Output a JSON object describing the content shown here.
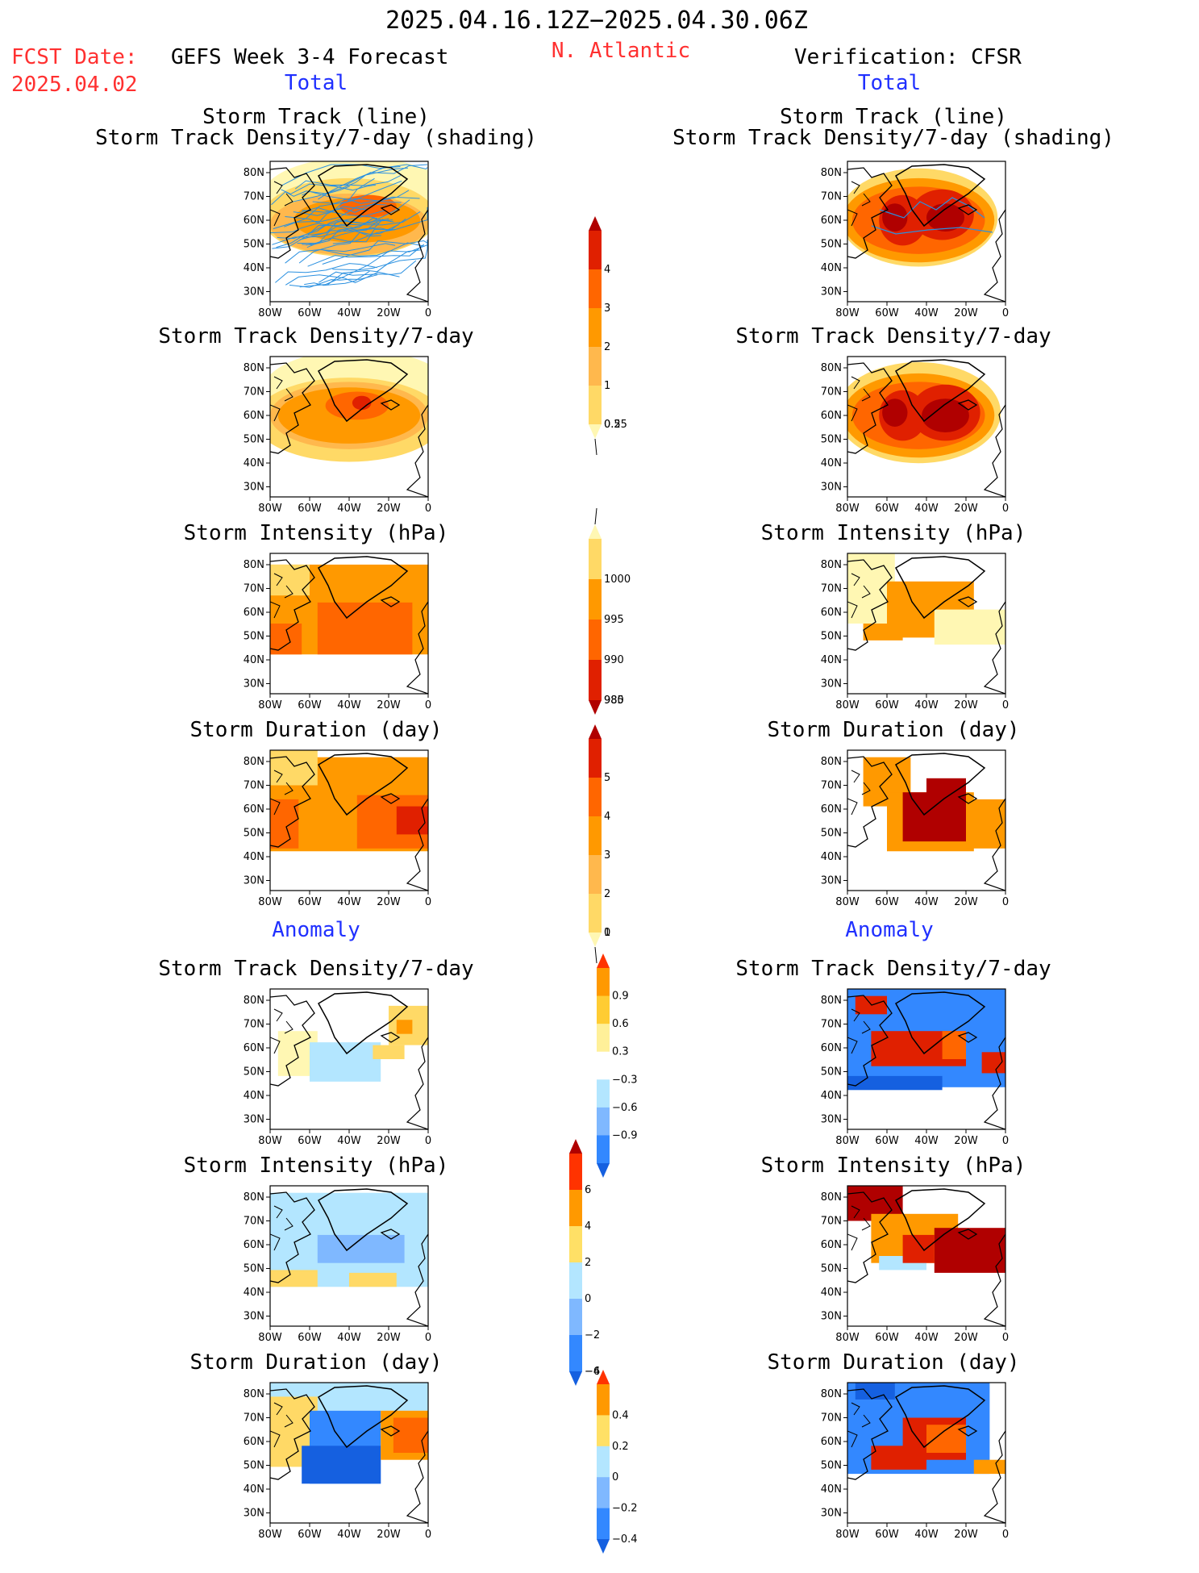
{
  "header": {
    "period": "2025.04.16.12Z−2025.04.30.06Z",
    "fcst_label": "FCST Date:",
    "fcst_date": "2025.04.02",
    "forecast_title": "GEFS Week 3-4 Forecast",
    "region": "N. Atlantic",
    "verification": "Verification: CFSR"
  },
  "sections": {
    "total_left": "Total",
    "total_right": "Total",
    "anomaly_left": "Anomaly",
    "anomaly_right": "Anomaly"
  },
  "panel_titles": {
    "track_line": "Storm Track (line)",
    "track_shading": "Storm Track Density/7-day (shading)",
    "density": "Storm Track Density/7-day",
    "intensity": "Storm Intensity (hPa)",
    "duration": "Storm Duration (day)"
  },
  "axes": {
    "lat_ticks": [
      "80N",
      "70N",
      "60N",
      "50N",
      "40N",
      "30N"
    ],
    "lon_ticks": [
      "80W",
      "60W",
      "40W",
      "20W",
      "0"
    ]
  },
  "colors": {
    "yellow_light": "#fff7b3",
    "yellow": "#ffd966",
    "orange_light": "#ffb84d",
    "orange": "#ff9900",
    "orange_dark": "#ff6600",
    "red": "#e02000",
    "dark_red": "#b00000",
    "blue_light": "#b3e6ff",
    "blue_mid": "#7fb8ff",
    "blue": "#3388ff",
    "blue_dark": "#1560e0",
    "track_line": "#2a90e0"
  },
  "chart_data": [
    {
      "type": "heatmap",
      "id": "fc-track",
      "panel": "left",
      "title": "Storm Track (line) / Storm Track Density/7-day (shading)",
      "note": "shading with storm track lines"
    },
    {
      "type": "heatmap",
      "id": "fc-density",
      "panel": "left",
      "title": "Storm Track Density/7-day"
    },
    {
      "type": "heatmap",
      "id": "fc-intensity",
      "panel": "left",
      "title": "Storm Intensity (hPa)"
    },
    {
      "type": "heatmap",
      "id": "fc-duration",
      "panel": "left",
      "title": "Storm Duration (day)"
    },
    {
      "type": "heatmap",
      "id": "fc-density-anom",
      "panel": "left",
      "title": "Storm Track Density/7-day (Anomaly)"
    },
    {
      "type": "heatmap",
      "id": "fc-intensity-anom",
      "panel": "left",
      "title": "Storm Intensity (hPa) (Anomaly)"
    },
    {
      "type": "heatmap",
      "id": "fc-duration-anom",
      "panel": "left",
      "title": "Storm Duration (day) (Anomaly)"
    },
    {
      "type": "heatmap",
      "id": "ver-track",
      "panel": "right",
      "title": "Storm Track (line) / Storm Track Density/7-day (shading)"
    },
    {
      "type": "heatmap",
      "id": "ver-density",
      "panel": "right",
      "title": "Storm Track Density/7-day"
    },
    {
      "type": "heatmap",
      "id": "ver-intensity",
      "panel": "right",
      "title": "Storm Intensity (hPa)"
    },
    {
      "type": "heatmap",
      "id": "ver-duration",
      "panel": "right",
      "title": "Storm Duration (day)"
    },
    {
      "type": "heatmap",
      "id": "ver-density-anom",
      "panel": "right",
      "title": "Storm Track Density/7-day (Anomaly)"
    },
    {
      "type": "heatmap",
      "id": "ver-intensity-anom",
      "panel": "right",
      "title": "Storm Intensity (hPa) (Anomaly)"
    },
    {
      "type": "heatmap",
      "id": "ver-duration-anom",
      "panel": "right",
      "title": "Storm Duration (day) (Anomaly)"
    }
  ],
  "colorbars": [
    {
      "id": "cb-density",
      "labels": [
        "4",
        "3",
        "2",
        "1",
        "0.5",
        "0.25"
      ],
      "colors": [
        "#b00000",
        "#e02000",
        "#ff6600",
        "#ff9900",
        "#ffb84d",
        "#ffd966",
        "#fff7b3"
      ]
    },
    {
      "id": "cb-intensity",
      "labels": [
        "1000",
        "995",
        "990",
        "985",
        "980"
      ],
      "colors": [
        "#fff7b3",
        "#ffd966",
        "#ff9900",
        "#ff6600",
        "#e02000",
        "#b00000"
      ]
    },
    {
      "id": "cb-duration",
      "labels": [
        "5",
        "4",
        "3",
        "2",
        "1",
        "0"
      ],
      "colors": [
        "#b00000",
        "#e02000",
        "#ff6600",
        "#ff9900",
        "#ffb84d",
        "#ffd966",
        "#fff7b3"
      ]
    },
    {
      "id": "cb-dens-anom",
      "labels": [
        "0.9",
        "0.6",
        "0.3",
        "−0.3",
        "−0.6",
        "−0.9"
      ],
      "colors": [
        "#ff3300",
        "#ff9900",
        "#ffcc33",
        "#fff099",
        "#ffffff",
        "#b3e6ff",
        "#7fb8ff",
        "#3388ff",
        "#1560e0"
      ]
    },
    {
      "id": "cb-int-anom",
      "labels": [
        "6",
        "4",
        "2",
        "0",
        "−2",
        "−4",
        "−6"
      ],
      "colors": [
        "#b00000",
        "#ff3300",
        "#ff9900",
        "#ffe066",
        "#b3e6ff",
        "#7fb8ff",
        "#3388ff",
        "#1560e0"
      ]
    },
    {
      "id": "cb-dur-anom",
      "labels": [
        "0.4",
        "0.2",
        "0",
        "−0.2",
        "−0.4"
      ],
      "colors": [
        "#ff3300",
        "#ff9900",
        "#ffe066",
        "#b3e6ff",
        "#7fb8ff",
        "#3388ff",
        "#1560e0"
      ]
    }
  ]
}
